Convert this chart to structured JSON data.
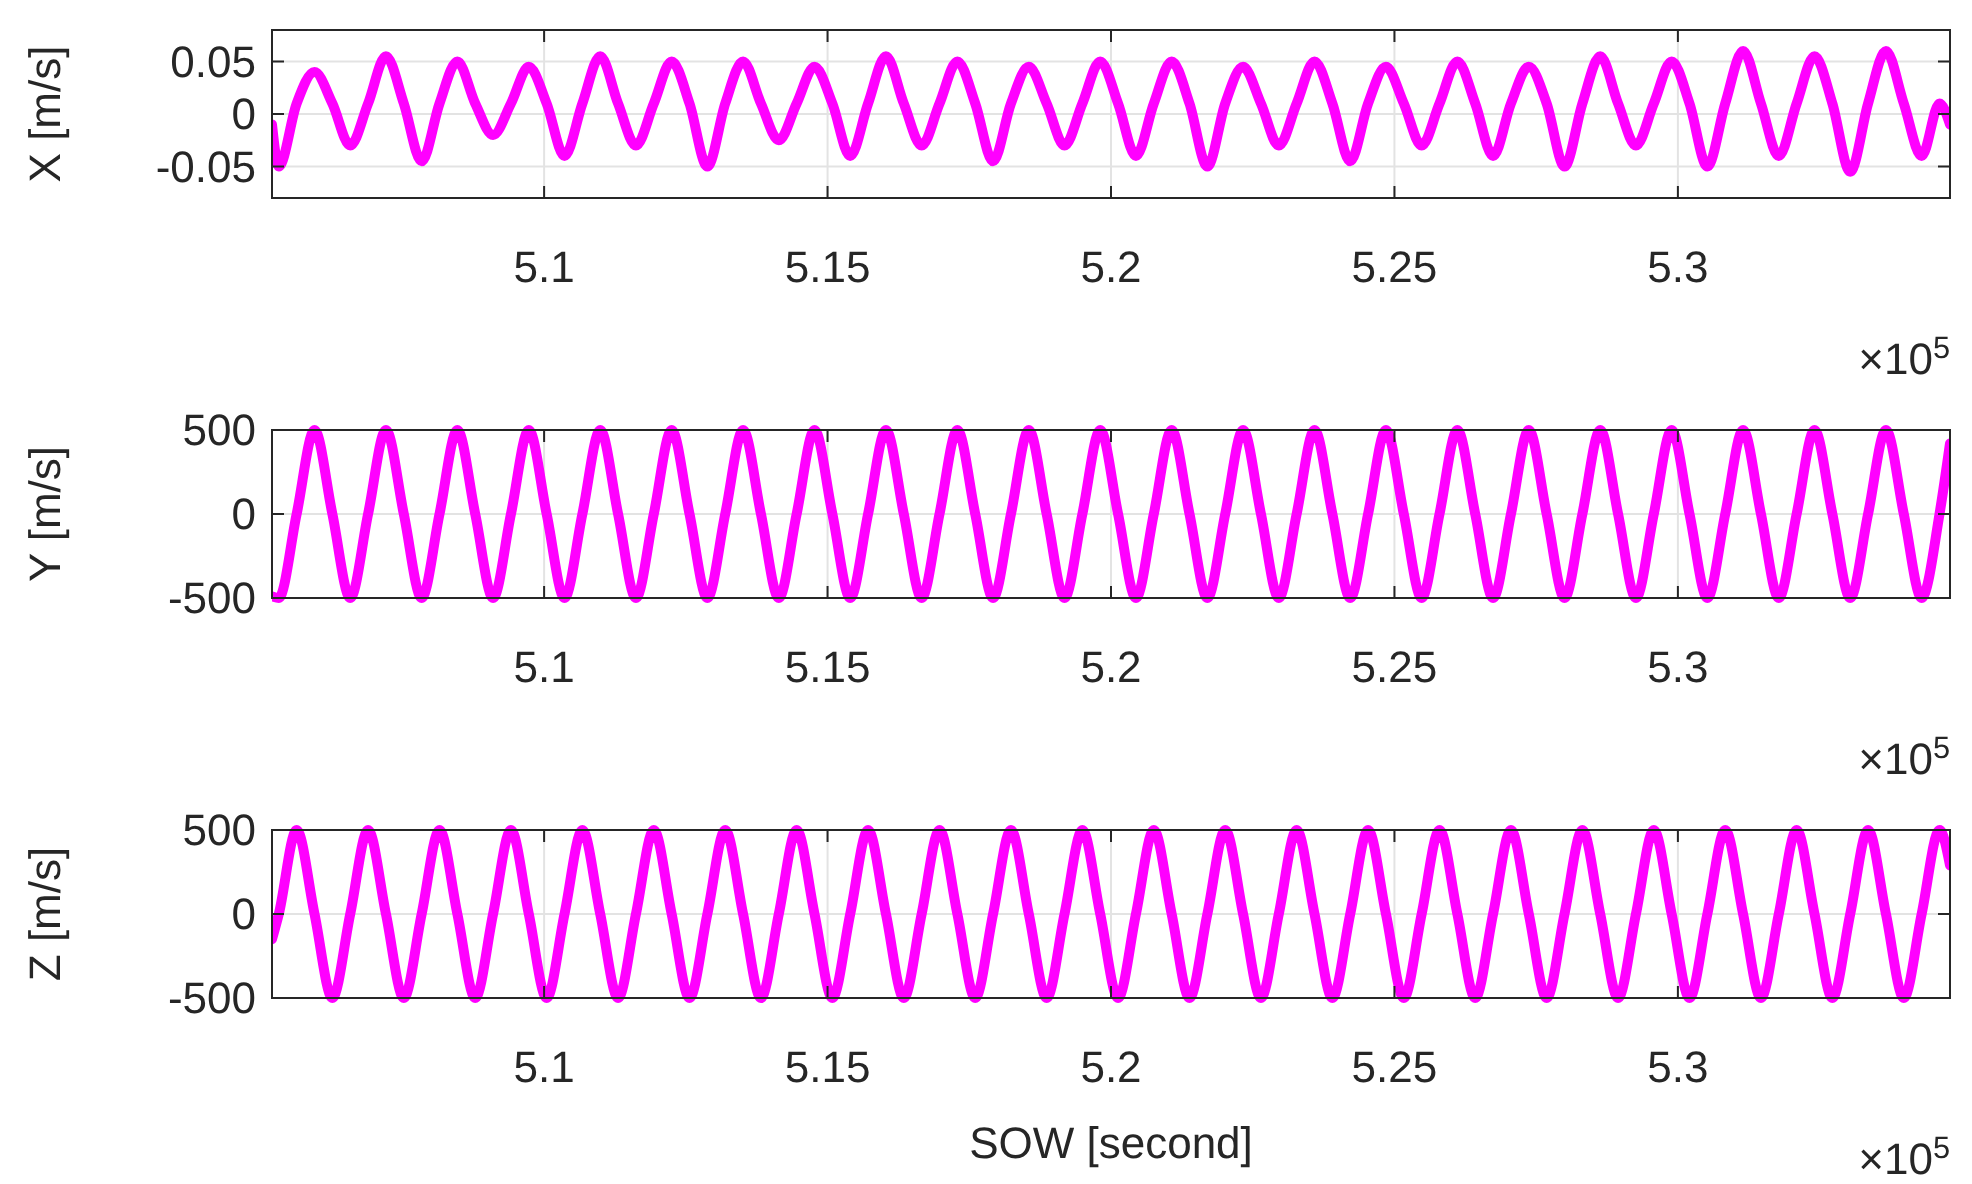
{
  "chart_data": [
    {
      "type": "line",
      "ylabel": "X [m/s]",
      "xlim": [
        5.052,
        5.348
      ],
      "ylim": [
        -0.08,
        0.08
      ],
      "yticks": [
        -0.05,
        0,
        0.05
      ],
      "xticks": [
        5.1,
        5.15,
        5.2,
        5.25,
        5.3
      ],
      "grid": true,
      "marker": "none",
      "line_style": "solid",
      "annotations": [
        "×10$^{5}$"
      ],
      "x": [
        5.052,
        5.0532,
        5.05635,
        5.0595,
        5.06265,
        5.0658,
        5.06895,
        5.0721,
        5.07525,
        5.0784,
        5.08155,
        5.0847,
        5.08785,
        5.091,
        5.09415,
        5.0973,
        5.10045,
        5.1036,
        5.10675,
        5.1099,
        5.11305,
        5.1162,
        5.11935,
        5.1225,
        5.12565,
        5.1288,
        5.13195,
        5.1351,
        5.13825,
        5.1414,
        5.14455,
        5.1477,
        5.15085,
        5.154,
        5.15715,
        5.1603,
        5.16345,
        5.1666,
        5.16975,
        5.1729,
        5.17605,
        5.1792,
        5.18235,
        5.1855,
        5.18865,
        5.1918,
        5.19495,
        5.1981,
        5.20125,
        5.2044,
        5.20755,
        5.2107,
        5.21385,
        5.217,
        5.22015,
        5.2233,
        5.22645,
        5.2296,
        5.23275,
        5.2359,
        5.23905,
        5.2422,
        5.24535,
        5.2485,
        5.25165,
        5.2548,
        5.25795,
        5.2611,
        5.26425,
        5.2674,
        5.27055,
        5.2737,
        5.27685,
        5.28,
        5.28315,
        5.2863,
        5.28945,
        5.2926,
        5.29575,
        5.2989,
        5.30205,
        5.3052,
        5.30835,
        5.3115,
        5.31465,
        5.3178,
        5.32095,
        5.3241,
        5.32725,
        5.3304,
        5.33355,
        5.3367,
        5.33985,
        5.343,
        5.34615,
        5.348
      ],
      "series": [
        {
          "color": "#ff00ff",
          "values": [
            -0.01,
            -0.05,
            0.01,
            0.04,
            0.01,
            -0.03,
            0.01,
            0.055,
            0.01,
            -0.045,
            0.01,
            0.05,
            0.01,
            -0.02,
            0.01,
            0.045,
            0.01,
            -0.04,
            0.01,
            0.055,
            0.01,
            -0.03,
            0.01,
            0.05,
            0.01,
            -0.05,
            0.01,
            0.05,
            0.01,
            -0.025,
            0.01,
            0.045,
            0.01,
            -0.04,
            0.01,
            0.055,
            0.01,
            -0.03,
            0.01,
            0.05,
            0.01,
            -0.045,
            0.01,
            0.045,
            0.01,
            -0.03,
            0.01,
            0.05,
            0.01,
            -0.04,
            0.01,
            0.05,
            0.01,
            -0.05,
            0.01,
            0.045,
            0.01,
            -0.03,
            0.01,
            0.05,
            0.01,
            -0.045,
            0.01,
            0.045,
            0.01,
            -0.03,
            0.01,
            0.05,
            0.01,
            -0.04,
            0.01,
            0.045,
            0.01,
            -0.05,
            0.01,
            0.055,
            0.01,
            -0.03,
            0.01,
            0.05,
            0.01,
            -0.05,
            0.01,
            0.06,
            0.01,
            -0.04,
            0.01,
            0.055,
            0.01,
            -0.055,
            0.01,
            0.06,
            0.01,
            -0.04,
            0.01,
            -0.01
          ]
        }
      ]
    },
    {
      "type": "line",
      "ylabel": "Y [m/s]",
      "xlim": [
        5.052,
        5.348
      ],
      "ylim": [
        -500,
        500
      ],
      "yticks": [
        -500,
        0,
        500
      ],
      "xticks": [
        5.1,
        5.15,
        5.2,
        5.25,
        5.3
      ],
      "grid": true,
      "marker": "none",
      "line_style": "solid",
      "annotations": [
        "×10$^{5}$"
      ],
      "x": [
        5.052,
        5.0532,
        5.05635,
        5.0595,
        5.06265,
        5.0658,
        5.06895,
        5.0721,
        5.07525,
        5.0784,
        5.08155,
        5.0847,
        5.08785,
        5.091,
        5.09415,
        5.0973,
        5.10045,
        5.1036,
        5.10675,
        5.1099,
        5.11305,
        5.1162,
        5.11935,
        5.1225,
        5.12565,
        5.1288,
        5.13195,
        5.1351,
        5.13825,
        5.1414,
        5.14455,
        5.1477,
        5.15085,
        5.154,
        5.15715,
        5.1603,
        5.16345,
        5.1666,
        5.16975,
        5.1729,
        5.17605,
        5.1792,
        5.18235,
        5.1855,
        5.18865,
        5.1918,
        5.19495,
        5.1981,
        5.20125,
        5.2044,
        5.20755,
        5.2107,
        5.21385,
        5.217,
        5.22015,
        5.2233,
        5.22645,
        5.2296,
        5.23275,
        5.2359,
        5.23905,
        5.2422,
        5.24535,
        5.2485,
        5.25165,
        5.2548,
        5.25795,
        5.2611,
        5.26425,
        5.2674,
        5.27055,
        5.2737,
        5.27685,
        5.28,
        5.28315,
        5.2863,
        5.28945,
        5.2926,
        5.29575,
        5.2989,
        5.30205,
        5.3052,
        5.30835,
        5.3115,
        5.31465,
        5.3178,
        5.32095,
        5.3241,
        5.32725,
        5.3304,
        5.33355,
        5.3367,
        5.33985,
        5.343,
        5.34615,
        5.348
      ],
      "series": [
        {
          "color": "#ff00ff",
          "values": [
            -490,
            -500,
            0,
            500,
            0,
            -500,
            0,
            500,
            0,
            -500,
            0,
            500,
            0,
            -500,
            0,
            500,
            0,
            -500,
            0,
            500,
            0,
            -500,
            0,
            500,
            0,
            -500,
            0,
            500,
            0,
            -500,
            0,
            500,
            0,
            -500,
            0,
            500,
            0,
            -500,
            0,
            500,
            0,
            -500,
            0,
            500,
            0,
            -500,
            0,
            500,
            0,
            -500,
            0,
            500,
            0,
            -500,
            0,
            500,
            0,
            -500,
            0,
            500,
            0,
            -500,
            0,
            500,
            0,
            -500,
            0,
            500,
            0,
            -500,
            0,
            500,
            0,
            -500,
            0,
            500,
            0,
            -500,
            0,
            500,
            0,
            -500,
            0,
            500,
            0,
            -500,
            0,
            500,
            0,
            -500,
            0,
            500,
            0,
            -500,
            0,
            420
          ]
        }
      ]
    },
    {
      "type": "line",
      "ylabel": "Z [m/s]",
      "xlabel": "SOW [second]",
      "xlim": [
        5.052,
        5.348
      ],
      "ylim": [
        -500,
        500
      ],
      "yticks": [
        -500,
        0,
        500
      ],
      "xticks": [
        5.1,
        5.15,
        5.2,
        5.25,
        5.3
      ],
      "grid": true,
      "marker": "none",
      "line_style": "solid",
      "annotations": [
        "×10$^{5}$"
      ],
      "x": [
        5.052,
        5.0532,
        5.05635,
        5.0595,
        5.06265,
        5.0658,
        5.06895,
        5.0721,
        5.07525,
        5.0784,
        5.08155,
        5.0847,
        5.08785,
        5.091,
        5.09415,
        5.0973,
        5.10045,
        5.1036,
        5.10675,
        5.1099,
        5.11305,
        5.1162,
        5.11935,
        5.1225,
        5.12565,
        5.1288,
        5.13195,
        5.1351,
        5.13825,
        5.1414,
        5.14455,
        5.1477,
        5.15085,
        5.154,
        5.15715,
        5.1603,
        5.16345,
        5.1666,
        5.16975,
        5.1729,
        5.17605,
        5.1792,
        5.18235,
        5.1855,
        5.18865,
        5.1918,
        5.19495,
        5.1981,
        5.20125,
        5.2044,
        5.20755,
        5.2107,
        5.21385,
        5.217,
        5.22015,
        5.2233,
        5.22645,
        5.2296,
        5.23275,
        5.2359,
        5.23905,
        5.2422,
        5.24535,
        5.2485,
        5.25165,
        5.2548,
        5.25795,
        5.2611,
        5.26425,
        5.2674,
        5.27055,
        5.2737,
        5.27685,
        5.28,
        5.28315,
        5.2863,
        5.28945,
        5.2926,
        5.29575,
        5.2989,
        5.30205,
        5.3052,
        5.30835,
        5.3115,
        5.31465,
        5.3178,
        5.32095,
        5.3241,
        5.32725,
        5.3304,
        5.33355,
        5.3367,
        5.33985,
        5.343,
        5.34615,
        5.348
      ],
      "series": [
        {
          "color": "#ff00ff",
          "values": [
            -150,
            0,
            500,
            0,
            -500,
            0,
            500,
            0,
            -500,
            0,
            500,
            0,
            -500,
            0,
            500,
            0,
            -500,
            0,
            500,
            0,
            -500,
            0,
            500,
            0,
            -500,
            0,
            500,
            0,
            -500,
            0,
            500,
            0,
            -500,
            0,
            500,
            0,
            -500,
            0,
            500,
            0,
            -500,
            0,
            500,
            0,
            -500,
            0,
            500,
            0,
            -500,
            0,
            500,
            0,
            -500,
            0,
            500,
            0,
            -500,
            0,
            500,
            0,
            -500,
            0,
            500,
            0,
            -500,
            0,
            500,
            0,
            -500,
            0,
            500,
            0,
            -500,
            0,
            500,
            0,
            -500,
            0,
            500,
            0,
            -500,
            0,
            500,
            0,
            -500,
            0,
            500,
            0,
            -500,
            0,
            500,
            0,
            -500,
            0,
            500,
            290
          ]
        }
      ]
    }
  ]
}
